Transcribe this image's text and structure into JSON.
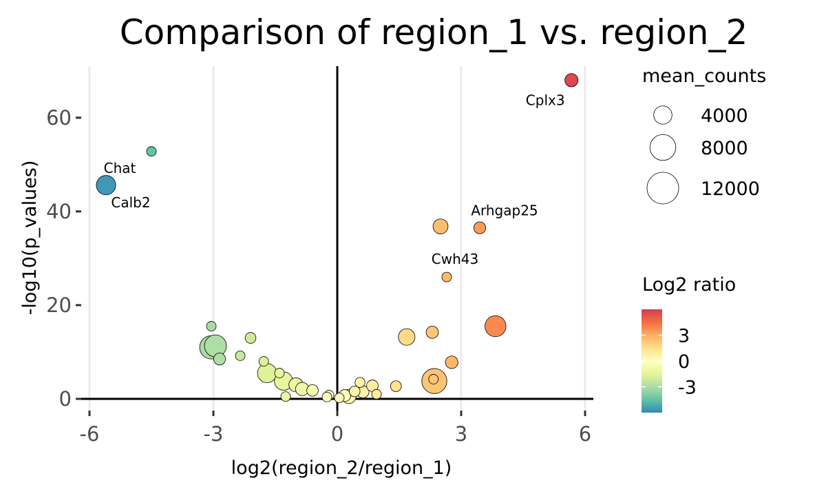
{
  "chart_data": {
    "type": "scatter",
    "title": "Comparison of region_1 vs. region_2",
    "xlabel": "log2(region_2/region_1)",
    "ylabel": "-log10(p_values)",
    "xlim": [
      -6.2,
      6.2
    ],
    "ylim": [
      -2.5,
      71
    ],
    "x_ticks": [
      -6,
      -3,
      0,
      3,
      6
    ],
    "x_tick_labels": [
      "-6",
      "-3",
      "0",
      "3",
      "6"
    ],
    "y_ticks": [
      0,
      20,
      40,
      60
    ],
    "y_tick_labels": [
      "0",
      "20",
      "40",
      "60"
    ],
    "grid": "vertical major lines",
    "reference_lines": {
      "x": 0,
      "y": 0
    },
    "size_legend": {
      "title": "mean_counts",
      "values": [
        4000,
        8000,
        12000
      ],
      "labels": [
        "4000",
        "8000",
        "12000"
      ]
    },
    "color_legend": {
      "title": "Log2 ratio",
      "labels": [
        "3",
        "0",
        "-3"
      ],
      "values": [
        3,
        0,
        -3
      ],
      "range": [
        -6,
        6
      ],
      "palette": [
        "#3288bd",
        "#66c2a5",
        "#abdda4",
        "#e6f598",
        "#ffffbf",
        "#fee08b",
        "#fdae61",
        "#f46d43",
        "#d53e4f"
      ]
    },
    "points": [
      {
        "x": 5.67,
        "y": 68.0,
        "mean_counts": 2100,
        "label": "Cplx3"
      },
      {
        "x": -4.5,
        "y": 52.8,
        "mean_counts": 1100
      },
      {
        "x": -5.6,
        "y": 45.6,
        "mean_counts": 4500,
        "label": "Chat"
      },
      {
        "x": -5.6,
        "y": 45.6,
        "mean_counts": 0,
        "label": "Calb2"
      },
      {
        "x": 2.5,
        "y": 36.8,
        "mean_counts": 2700
      },
      {
        "x": 3.45,
        "y": 36.5,
        "mean_counts": 1700,
        "label": "Arhgap25"
      },
      {
        "x": 2.65,
        "y": 26.0,
        "mean_counts": 1000,
        "label": "Cwh43"
      },
      {
        "x": 3.83,
        "y": 15.5,
        "mean_counts": 5300
      },
      {
        "x": 2.3,
        "y": 14.2,
        "mean_counts": 1800
      },
      {
        "x": 1.68,
        "y": 13.2,
        "mean_counts": 3300
      },
      {
        "x": 2.77,
        "y": 7.8,
        "mean_counts": 1900
      },
      {
        "x": 2.35,
        "y": 3.8,
        "mean_counts": 7500
      },
      {
        "x": 2.33,
        "y": 4.2,
        "mean_counts": 600
      },
      {
        "x": 1.42,
        "y": 2.7,
        "mean_counts": 1400
      },
      {
        "x": 0.85,
        "y": 2.8,
        "mean_counts": 1600
      },
      {
        "x": 0.62,
        "y": 1.5,
        "mean_counts": 1800
      },
      {
        "x": 0.55,
        "y": 3.5,
        "mean_counts": 1200
      },
      {
        "x": 0.28,
        "y": 0.5,
        "mean_counts": 2400
      },
      {
        "x": 0.42,
        "y": 1.6,
        "mean_counts": 1400
      },
      {
        "x": 0.18,
        "y": 0.7,
        "mean_counts": 1700
      },
      {
        "x": 0.05,
        "y": 0.2,
        "mean_counts": 500
      },
      {
        "x": 0.95,
        "y": 1.0,
        "mean_counts": 500
      },
      {
        "x": -0.25,
        "y": 0.4,
        "mean_counts": 500
      },
      {
        "x": -0.2,
        "y": 0.8,
        "mean_counts": 1100
      },
      {
        "x": -0.6,
        "y": 1.8,
        "mean_counts": 1600
      },
      {
        "x": -0.85,
        "y": 2.1,
        "mean_counts": 2100
      },
      {
        "x": -1.0,
        "y": 3.0,
        "mean_counts": 2400
      },
      {
        "x": -1.3,
        "y": 3.8,
        "mean_counts": 4000
      },
      {
        "x": -1.25,
        "y": 0.5,
        "mean_counts": 1100
      },
      {
        "x": -1.4,
        "y": 5.5,
        "mean_counts": 700
      },
      {
        "x": -1.7,
        "y": 5.5,
        "mean_counts": 4400
      },
      {
        "x": -1.78,
        "y": 8.0,
        "mean_counts": 900
      },
      {
        "x": -2.35,
        "y": 9.2,
        "mean_counts": 900
      },
      {
        "x": -2.1,
        "y": 13.0,
        "mean_counts": 1400
      },
      {
        "x": -3.05,
        "y": 11.0,
        "mean_counts": 6500
      },
      {
        "x": -2.95,
        "y": 11.3,
        "mean_counts": 5800
      },
      {
        "x": -2.85,
        "y": 8.5,
        "mean_counts": 1700
      },
      {
        "x": -3.05,
        "y": 15.5,
        "mean_counts": 900
      }
    ]
  }
}
